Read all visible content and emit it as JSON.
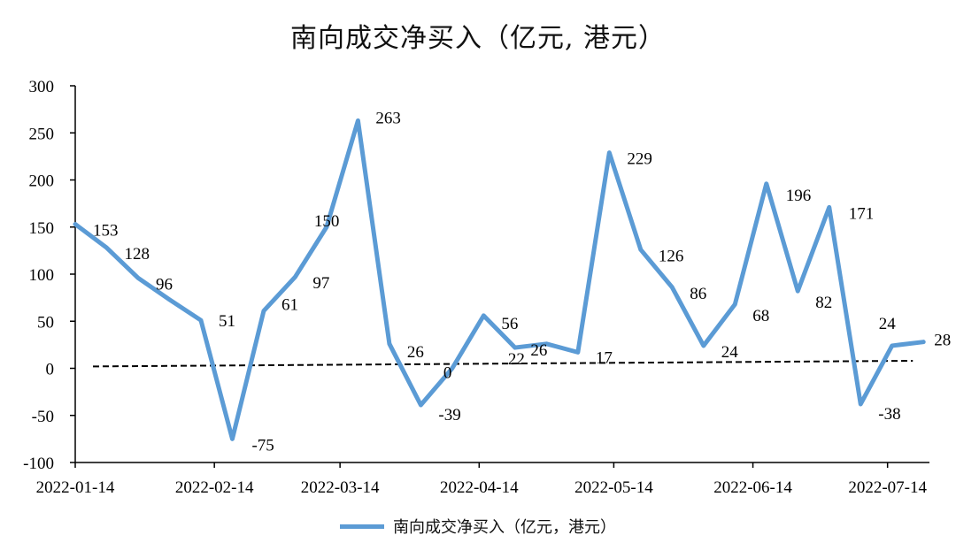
{
  "chart_data": {
    "type": "line",
    "title": "南向成交净买入（亿元, 港元）",
    "x": [
      "2022-01-14",
      "2022-01-21",
      "2022-01-28",
      "2022-02-04",
      "2022-02-11",
      "2022-02-18",
      "2022-02-25",
      "2022-03-04",
      "2022-03-11",
      "2022-03-18",
      "2022-03-25",
      "2022-04-01",
      "2022-04-08",
      "2022-04-15",
      "2022-04-22",
      "2022-04-29",
      "2022-05-06",
      "2022-05-13",
      "2022-05-20",
      "2022-05-27",
      "2022-06-03",
      "2022-06-10",
      "2022-06-17",
      "2022-06-24",
      "2022-07-01",
      "2022-07-08",
      "2022-07-15",
      "2022-07-22"
    ],
    "x_tick_labels": [
      "2022-01-14",
      "2022-02-14",
      "2022-03-14",
      "2022-04-14",
      "2022-05-14",
      "2022-06-14",
      "2022-07-14"
    ],
    "series": [
      {
        "name": "南向成交净买入（亿元，港元）",
        "color": "#5b9bd5",
        "values": [
          153,
          128,
          96,
          73,
          51,
          -75,
          61,
          97,
          150,
          263,
          26,
          -39,
          0,
          56,
          22,
          26,
          17,
          229,
          126,
          86,
          24,
          68,
          196,
          82,
          171,
          -38,
          24,
          28
        ],
        "labels": [
          "153",
          "128",
          "96",
          null,
          "51",
          "-75",
          "61",
          "97",
          "150",
          "263",
          "26",
          "-39",
          "0",
          "56",
          "22",
          "26",
          "17",
          "229",
          "126",
          "86",
          "24",
          "68",
          "196",
          "82",
          "171",
          "-38",
          "24",
          "28"
        ]
      }
    ],
    "trend": {
      "style": "dashed",
      "color": "#000000",
      "start_value": 2,
      "end_value": 8
    },
    "ylim": [
      -100,
      300
    ],
    "yticks": [
      "300",
      "250",
      "200",
      "150",
      "100",
      "50",
      "0",
      "-50",
      "-100"
    ],
    "xlabel": "",
    "ylabel": "",
    "grid": false,
    "legend_position": "bottom"
  }
}
